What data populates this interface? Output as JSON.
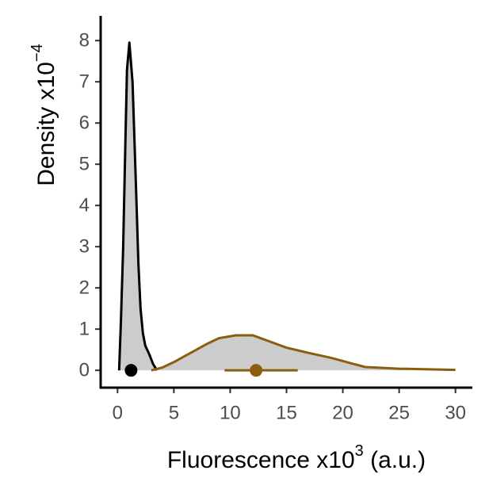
{
  "chart_data": {
    "type": "density",
    "x_label": "Fluorescence x10",
    "x_label_exponent": "3",
    "x_label_suffix": " (a.u.)",
    "y_label": "Density x10",
    "y_label_exponent": "−4",
    "xlim": [
      -1.5,
      31.5
    ],
    "ylim": [
      -0.42,
      8.6
    ],
    "xticks": [
      0,
      5,
      10,
      15,
      20,
      25,
      30
    ],
    "yticks": [
      0,
      1,
      2,
      3,
      4,
      5,
      6,
      7,
      8
    ],
    "fill": "#cccccc",
    "series": [
      {
        "color": "#000000",
        "x": [
          0.14,
          0.3,
          0.5,
          0.7,
          0.84,
          1.05,
          1.33,
          1.5,
          1.69,
          1.85,
          2.04,
          2.25,
          2.46,
          2.8,
          3.16,
          3.5
        ],
        "values": [
          0,
          1.2,
          3.0,
          5.6,
          7.3,
          7.95,
          7.0,
          5.6,
          4.0,
          2.6,
          1.5,
          0.9,
          0.6,
          0.4,
          0.15,
          0
        ]
      },
      {
        "color": "#8b5e0f",
        "x": [
          3,
          4,
          5,
          6,
          7,
          8,
          9,
          10.5,
          12,
          13.5,
          15,
          17,
          19,
          21,
          22,
          25,
          30
        ],
        "values": [
          0,
          0.07,
          0.2,
          0.35,
          0.5,
          0.65,
          0.78,
          0.85,
          0.85,
          0.7,
          0.55,
          0.42,
          0.3,
          0.15,
          0.08,
          0.04,
          0.01
        ]
      }
    ],
    "summaries": [
      {
        "color": "#000000",
        "x": 1.2,
        "y": 0
      },
      {
        "color": "#8b5e0f",
        "x": 12.3,
        "y": 0,
        "xmin": 9.5,
        "xmax": 16
      }
    ]
  }
}
